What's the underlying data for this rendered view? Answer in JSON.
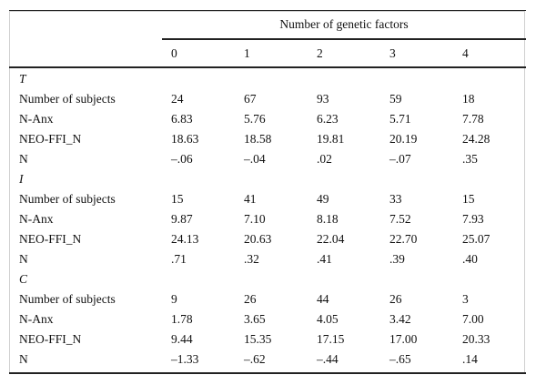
{
  "table": {
    "group_header": "Number of genetic factors",
    "columns": [
      "0",
      "1",
      "2",
      "3",
      "4"
    ],
    "sections": [
      {
        "label": "T",
        "rows": [
          [
            "Number of subjects",
            "24",
            "67",
            "93",
            "59",
            "18"
          ],
          [
            "N-Anx",
            "6.83",
            "5.76",
            "6.23",
            "5.71",
            "7.78"
          ],
          [
            "NEO-FFI_N",
            "18.63",
            "18.58",
            "19.81",
            "20.19",
            "24.28"
          ],
          [
            "N",
            "–.06",
            "–.04",
            ".02",
            "–.07",
            ".35"
          ]
        ]
      },
      {
        "label": "I",
        "rows": [
          [
            "Number of subjects",
            "15",
            "41",
            "49",
            "33",
            "15"
          ],
          [
            "N-Anx",
            "9.87",
            "7.10",
            "8.18",
            "7.52",
            "7.93"
          ],
          [
            "NEO-FFI_N",
            "24.13",
            "20.63",
            "22.04",
            "22.70",
            "25.07"
          ],
          [
            "N",
            ".71",
            ".32",
            ".41",
            ".39",
            ".40"
          ]
        ]
      },
      {
        "label": "C",
        "rows": [
          [
            "Number of subjects",
            "9",
            "26",
            "44",
            "26",
            "3"
          ],
          [
            "N-Anx",
            "1.78",
            "3.65",
            "4.05",
            "3.42",
            "7.00"
          ],
          [
            "NEO-FFI_N",
            "9.44",
            "15.35",
            "17.15",
            "17.00",
            "20.33"
          ],
          [
            "N",
            "–1.33",
            "–.62",
            "–.44",
            "–.65",
            ".14"
          ]
        ]
      }
    ]
  }
}
